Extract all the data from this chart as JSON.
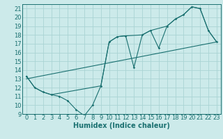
{
  "xlabel": "Humidex (Indice chaleur)",
  "bg_color": "#cceaea",
  "grid_color": "#aad4d4",
  "line_color": "#1a7070",
  "xlim": [
    -0.5,
    23.5
  ],
  "ylim": [
    9,
    21.5
  ],
  "xticks": [
    0,
    1,
    2,
    3,
    4,
    5,
    6,
    7,
    8,
    9,
    10,
    11,
    12,
    13,
    14,
    15,
    16,
    17,
    18,
    19,
    20,
    21,
    22,
    23
  ],
  "yticks": [
    9,
    10,
    11,
    12,
    13,
    14,
    15,
    16,
    17,
    18,
    19,
    20,
    21
  ],
  "line1_x": [
    0,
    1,
    2,
    3,
    4,
    5,
    6,
    7,
    8,
    9,
    10,
    11,
    12,
    13,
    14,
    15,
    16,
    17,
    18,
    19,
    20,
    21,
    22,
    23
  ],
  "line1_y": [
    13.3,
    12.0,
    11.5,
    11.2,
    11.0,
    10.5,
    9.5,
    8.8,
    10.0,
    12.2,
    17.2,
    17.8,
    17.9,
    14.3,
    18.0,
    18.5,
    16.5,
    19.0,
    19.8,
    20.3,
    21.2,
    21.0,
    18.5,
    17.2
  ],
  "line2_x": [
    0,
    1,
    2,
    3,
    9,
    10,
    11,
    12,
    14,
    15,
    17,
    18,
    19,
    20,
    21,
    22,
    23
  ],
  "line2_y": [
    13.3,
    12.0,
    11.5,
    11.2,
    12.2,
    17.2,
    17.8,
    17.9,
    18.0,
    18.5,
    19.0,
    19.8,
    20.3,
    21.2,
    21.0,
    18.5,
    17.2
  ],
  "line3_x": [
    0,
    23
  ],
  "line3_y": [
    13.0,
    17.2
  ],
  "xlabel_fontsize": 7,
  "tick_fontsize": 6
}
